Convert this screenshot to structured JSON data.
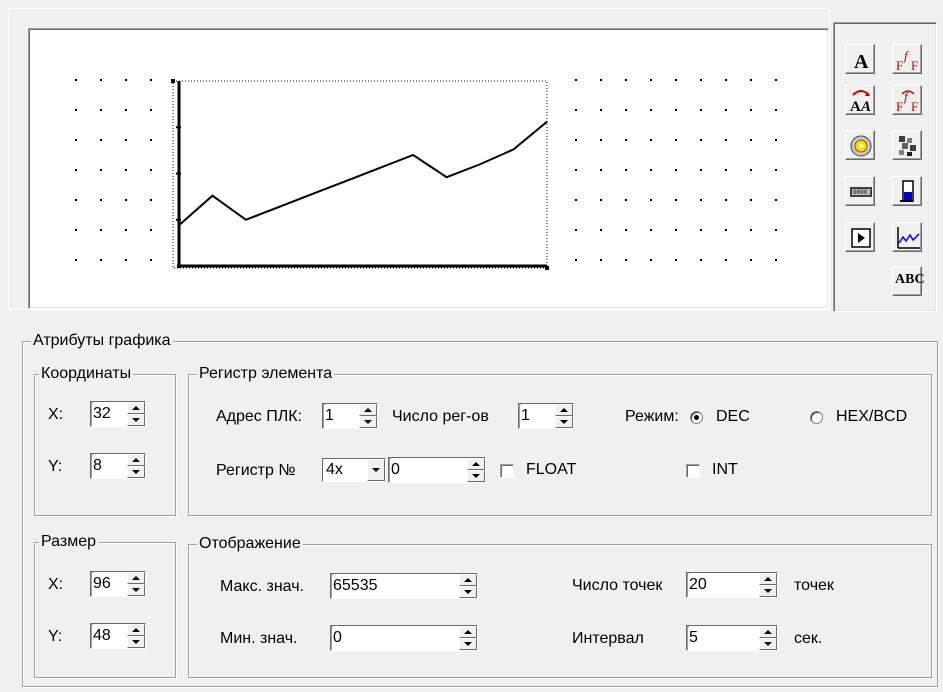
{
  "toolbar": {
    "buttons": [
      {
        "name": "text-bold-a-icon"
      },
      {
        "name": "font-ff-icon"
      },
      {
        "name": "swap-text-aa-icon"
      },
      {
        "name": "font-swap-ff-icon"
      },
      {
        "name": "lamp-button-icon"
      },
      {
        "name": "bitmap-picture-icon"
      },
      {
        "name": "numeric-display-icon"
      },
      {
        "name": "bar-indicator-icon"
      },
      {
        "name": "play-button-icon"
      },
      {
        "name": "trend-chart-icon"
      },
      {
        "name": "abc-text-icon"
      }
    ],
    "abc_label": "ABC"
  },
  "chart_preview": {
    "chart_data": {
      "type": "line",
      "x": [
        0,
        1,
        2,
        3,
        4,
        5,
        6,
        7,
        8,
        9,
        10,
        11
      ],
      "values": [
        0.22,
        0.38,
        0.25,
        0.32,
        0.39,
        0.46,
        0.53,
        0.6,
        0.48,
        0.55,
        0.63,
        0.78
      ],
      "ylim": [
        0,
        1
      ]
    }
  },
  "attrs": {
    "title": "Атрибуты графика",
    "coords": {
      "title": "Координаты",
      "x_label": "X:",
      "x_value": "32",
      "y_label": "Y:",
      "y_value": "8"
    },
    "register": {
      "title": "Регистр элемента",
      "plc_addr_label": "Адрес ПЛК:",
      "plc_addr_value": "1",
      "reg_count_label": "Число рег-ов",
      "reg_count_value": "1",
      "mode_label": "Режим:",
      "mode_dec": "DEC",
      "mode_hex": "HEX/BCD",
      "reg_no_label": "Регистр №",
      "reg_type_value": "4x",
      "reg_no_value": "0",
      "float_label": "FLOAT",
      "int_label": "INT"
    },
    "size": {
      "title": "Размер",
      "x_label": "X:",
      "x_value": "96",
      "y_label": "Y:",
      "y_value": "48"
    },
    "display": {
      "title": "Отображение",
      "max_label": "Макс. знач.",
      "max_value": "65535",
      "min_label": "Мин. знач.",
      "min_value": "0",
      "points_label": "Число точек",
      "points_value": "20",
      "points_unit": "точек",
      "interval_label": "Интервал",
      "interval_value": "5",
      "interval_unit": "сек."
    }
  }
}
